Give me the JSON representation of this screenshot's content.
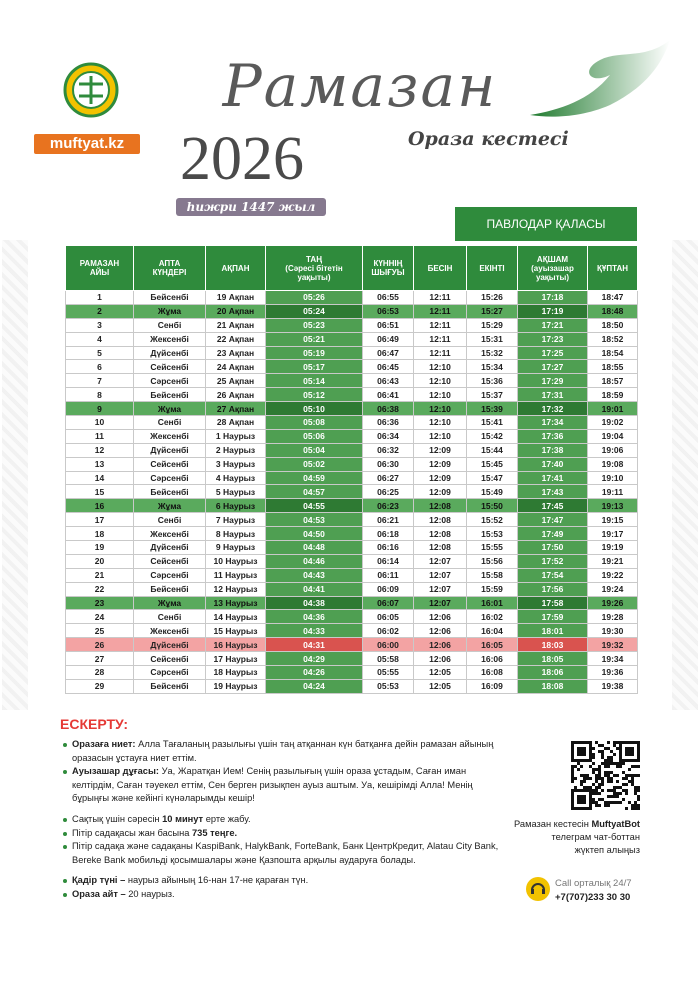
{
  "header": {
    "site": "muftyat.kz",
    "title": "Рамазан",
    "year": "2026",
    "subtitle": "Ораза кестесі",
    "hijri": "һижри 1447 жыл",
    "city": "ПАВЛОДАР ҚАЛАСЫ"
  },
  "table": {
    "columns": [
      "РАМАЗАН\nАЙЫ",
      "АПТА\nКҮНДЕРІ",
      "АҚПАН",
      "ТАҢ\n(Сәресі бітетін\nуақыты)",
      "КҮННІҢ\nШЫҒУЫ",
      "БЕСІН",
      "ЕКІНТІ",
      "АҚШАМ\n(ауызашар\nуақыты)",
      "ҚҰПТАН"
    ],
    "rows": [
      [
        "1",
        "Бейсенбі",
        "19 Ақпан",
        "05:26",
        "06:55",
        "12:11",
        "15:26",
        "17:18",
        "18:47"
      ],
      [
        "2",
        "Жұма",
        "20 Ақпан",
        "05:24",
        "06:53",
        "12:11",
        "15:27",
        "17:19",
        "18:48"
      ],
      [
        "3",
        "Сенбі",
        "21 Ақпан",
        "05:23",
        "06:51",
        "12:11",
        "15:29",
        "17:21",
        "18:50"
      ],
      [
        "4",
        "Жексенбі",
        "22 Ақпан",
        "05:21",
        "06:49",
        "12:11",
        "15:31",
        "17:23",
        "18:52"
      ],
      [
        "5",
        "Дүйсенбі",
        "23 Ақпан",
        "05:19",
        "06:47",
        "12:11",
        "15:32",
        "17:25",
        "18:54"
      ],
      [
        "6",
        "Сейсенбі",
        "24 Ақпан",
        "05:17",
        "06:45",
        "12:10",
        "15:34",
        "17:27",
        "18:55"
      ],
      [
        "7",
        "Сәрсенбі",
        "25 Ақпан",
        "05:14",
        "06:43",
        "12:10",
        "15:36",
        "17:29",
        "18:57"
      ],
      [
        "8",
        "Бейсенбі",
        "26 Ақпан",
        "05:12",
        "06:41",
        "12:10",
        "15:37",
        "17:31",
        "18:59"
      ],
      [
        "9",
        "Жұма",
        "27 Ақпан",
        "05:10",
        "06:38",
        "12:10",
        "15:39",
        "17:32",
        "19:01"
      ],
      [
        "10",
        "Сенбі",
        "28 Ақпан",
        "05:08",
        "06:36",
        "12:10",
        "15:41",
        "17:34",
        "19:02"
      ],
      [
        "11",
        "Жексенбі",
        "1 Наурыз",
        "05:06",
        "06:34",
        "12:10",
        "15:42",
        "17:36",
        "19:04"
      ],
      [
        "12",
        "Дүйсенбі",
        "2 Наурыз",
        "05:04",
        "06:32",
        "12:09",
        "15:44",
        "17:38",
        "19:06"
      ],
      [
        "13",
        "Сейсенбі",
        "3 Наурыз",
        "05:02",
        "06:30",
        "12:09",
        "15:45",
        "17:40",
        "19:08"
      ],
      [
        "14",
        "Сәрсенбі",
        "4 Наурыз",
        "04:59",
        "06:27",
        "12:09",
        "15:47",
        "17:41",
        "19:10"
      ],
      [
        "15",
        "Бейсенбі",
        "5 Наурыз",
        "04:57",
        "06:25",
        "12:09",
        "15:49",
        "17:43",
        "19:11"
      ],
      [
        "16",
        "Жұма",
        "6 Наурыз",
        "04:55",
        "06:23",
        "12:08",
        "15:50",
        "17:45",
        "19:13"
      ],
      [
        "17",
        "Сенбі",
        "7 Наурыз",
        "04:53",
        "06:21",
        "12:08",
        "15:52",
        "17:47",
        "19:15"
      ],
      [
        "18",
        "Жексенбі",
        "8 Наурыз",
        "04:50",
        "06:18",
        "12:08",
        "15:53",
        "17:49",
        "19:17"
      ],
      [
        "19",
        "Дүйсенбі",
        "9 Наурыз",
        "04:48",
        "06:16",
        "12:08",
        "15:55",
        "17:50",
        "19:19"
      ],
      [
        "20",
        "Сейсенбі",
        "10 Наурыз",
        "04:46",
        "06:14",
        "12:07",
        "15:56",
        "17:52",
        "19:21"
      ],
      [
        "21",
        "Сәрсенбі",
        "11 Наурыз",
        "04:43",
        "06:11",
        "12:07",
        "15:58",
        "17:54",
        "19:22"
      ],
      [
        "22",
        "Бейсенбі",
        "12 Наурыз",
        "04:41",
        "06:09",
        "12:07",
        "15:59",
        "17:56",
        "19:24"
      ],
      [
        "23",
        "Жұма",
        "13 Наурыз",
        "04:38",
        "06:07",
        "12:07",
        "16:01",
        "17:58",
        "19:26"
      ],
      [
        "24",
        "Сенбі",
        "14 Наурыз",
        "04:36",
        "06:05",
        "12:06",
        "16:02",
        "17:59",
        "19:28"
      ],
      [
        "25",
        "Жексенбі",
        "15 Наурыз",
        "04:33",
        "06:02",
        "12:06",
        "16:04",
        "18:01",
        "19:30"
      ],
      [
        "26",
        "Дүйсенбі",
        "16 Наурыз",
        "04:31",
        "06:00",
        "12:06",
        "16:05",
        "18:03",
        "19:32"
      ],
      [
        "27",
        "Сейсенбі",
        "17 Наурыз",
        "04:29",
        "05:58",
        "12:06",
        "16:06",
        "18:05",
        "19:34"
      ],
      [
        "28",
        "Сәрсенбі",
        "18 Наурыз",
        "04:26",
        "05:55",
        "12:05",
        "16:08",
        "18:06",
        "19:36"
      ],
      [
        "29",
        "Бейсенбі",
        "19 Наурыз",
        "04:24",
        "05:53",
        "12:05",
        "16:09",
        "18:08",
        "19:38"
      ]
    ]
  },
  "notes": {
    "title": "ЕСКЕРТУ:",
    "groups": [
      [
        [
          {
            "text": "Оразаға ниет:",
            "bold": true
          },
          {
            "text": "Алла Тағаланың разылығы үшін таң атқаннан күн батқанға дейін рамазан айының оразасын ұстауға ниет еттім."
          }
        ],
        [
          {
            "text": "Ауызашар дұғасы:",
            "bold": true
          },
          {
            "text": "Уа, Жаратқан Ием! Сенің разылығың үшін ораза ұстадым, Саған иман келтірдім, Саған тәуекел еттім, Сен берген ризықпен ауыз аштым. Уа, кешірімді Алла! Менің бұрыңғы және кейінгі күнәларымды кешір!"
          }
        ]
      ],
      [
        [
          {
            "text": "Сақтық үшін сәресін"
          },
          {
            "text": "10 минут",
            "bold": true
          },
          {
            "text": "ерте жабу."
          }
        ],
        [
          {
            "text": "Пітір садақасы жан басына"
          },
          {
            "text": "735 теңге.",
            "bold": true
          }
        ],
        [
          {
            "text": "Пітір садақа және садақаны KaspiBank, HalykBank, ForteBank, Банк ЦентрКредит, Alatau City Bank, Bereke Bank мобильді қосымшалары және Қазпошта арқылы аударуға болады."
          }
        ]
      ],
      [
        [
          {
            "text": "Қадір түні –",
            "bold": true
          },
          {
            "text": "наурыз айының 16-нан 17-не қараған түн."
          }
        ],
        [
          {
            "text": "Ораза айт –",
            "bold": true
          },
          {
            "text": "20 наурыз."
          }
        ]
      ]
    ]
  },
  "bot": {
    "intro": "Рамазан кестесін",
    "name": "MuftyatBot",
    "line2": "телеграм чат-боттан",
    "line3": "жүктеп алыңыз"
  },
  "call": {
    "label": "Call орталық 24/7",
    "phone": "+7(707)233 30 30"
  }
}
